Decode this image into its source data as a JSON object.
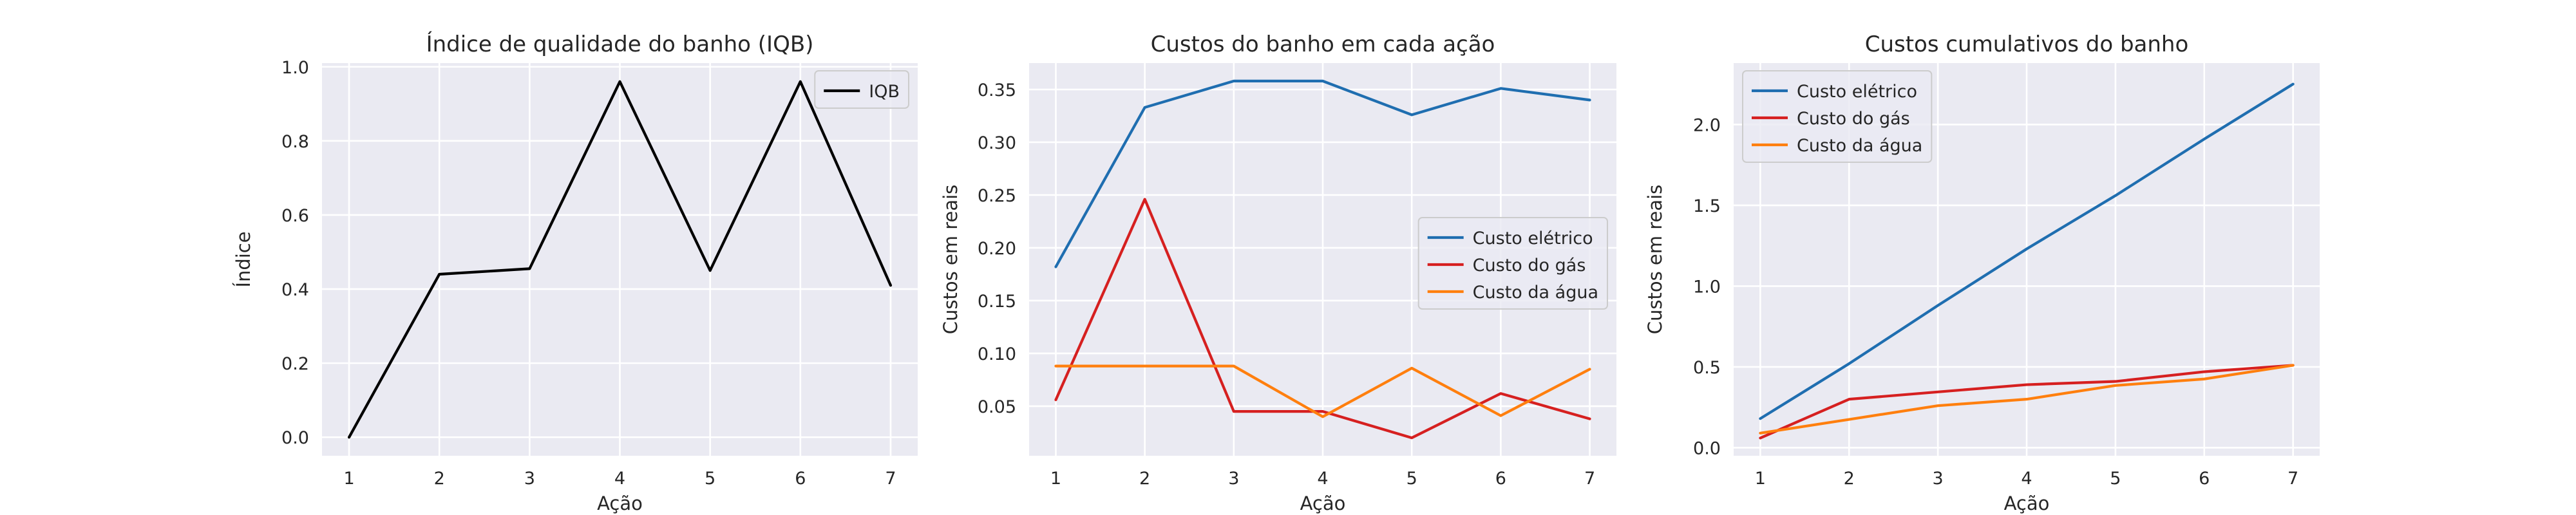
{
  "chart_data": [
    {
      "type": "line",
      "title": "Índice de qualidade do banho (IQB)",
      "xlabel": "Ação",
      "ylabel": "Índice",
      "x": [
        1,
        2,
        3,
        4,
        5,
        6,
        7
      ],
      "xlim": [
        0.7,
        7.3
      ],
      "ylim": [
        -0.05,
        1.01
      ],
      "xticks": [
        1,
        2,
        3,
        4,
        5,
        6,
        7
      ],
      "yticks": [
        0.0,
        0.2,
        0.4,
        0.6,
        0.8,
        1.0
      ],
      "ytick_labels": [
        "0.0",
        "0.2",
        "0.4",
        "0.6",
        "0.8",
        "1.0"
      ],
      "grid": true,
      "legend_position": "top-right",
      "series": [
        {
          "name": "IQB",
          "color": "#000000",
          "values": [
            0.0,
            0.44,
            0.455,
            0.96,
            0.45,
            0.96,
            0.41
          ]
        }
      ]
    },
    {
      "type": "line",
      "title": "Custos do banho em cada ação",
      "xlabel": "Ação",
      "ylabel": "Custos em reais",
      "x": [
        1,
        2,
        3,
        4,
        5,
        6,
        7
      ],
      "xlim": [
        0.7,
        7.3
      ],
      "ylim": [
        0.003,
        0.375
      ],
      "xticks": [
        1,
        2,
        3,
        4,
        5,
        6,
        7
      ],
      "yticks": [
        0.05,
        0.1,
        0.15,
        0.2,
        0.25,
        0.3,
        0.35
      ],
      "ytick_labels": [
        "0.05",
        "0.10",
        "0.15",
        "0.20",
        "0.25",
        "0.30",
        "0.35"
      ],
      "grid": true,
      "legend_position": "center-right",
      "series": [
        {
          "name": "Custo elétrico",
          "color": "#1f6eb0",
          "values": [
            0.182,
            0.333,
            0.358,
            0.358,
            0.326,
            0.351,
            0.34
          ]
        },
        {
          "name": "Custo do gás",
          "color": "#d62020",
          "values": [
            0.056,
            0.246,
            0.045,
            0.045,
            0.02,
            0.062,
            0.038
          ]
        },
        {
          "name": "Custo da água",
          "color": "#ff7f0e",
          "values": [
            0.088,
            0.088,
            0.088,
            0.04,
            0.086,
            0.041,
            0.085
          ]
        }
      ]
    },
    {
      "type": "line",
      "title": "Custos cumulativos do banho",
      "xlabel": "Ação",
      "ylabel": "Custos em reais",
      "x": [
        1,
        2,
        3,
        4,
        5,
        6,
        7
      ],
      "xlim": [
        0.7,
        7.3
      ],
      "ylim": [
        -0.05,
        2.38
      ],
      "xticks": [
        1,
        2,
        3,
        4,
        5,
        6,
        7
      ],
      "yticks": [
        0.0,
        0.5,
        1.0,
        1.5,
        2.0
      ],
      "ytick_labels": [
        "0.0",
        "0.5",
        "1.0",
        "1.5",
        "2.0"
      ],
      "grid": true,
      "legend_position": "top-left",
      "series": [
        {
          "name": "Custo elétrico",
          "color": "#1f6eb0",
          "values": [
            0.18,
            0.52,
            0.88,
            1.23,
            1.56,
            1.91,
            2.25
          ]
        },
        {
          "name": "Custo do gás",
          "color": "#d62020",
          "values": [
            0.06,
            0.3,
            0.345,
            0.39,
            0.41,
            0.47,
            0.51
          ]
        },
        {
          "name": "Custo da água",
          "color": "#ff7f0e",
          "values": [
            0.09,
            0.175,
            0.26,
            0.3,
            0.385,
            0.425,
            0.51
          ]
        }
      ]
    }
  ]
}
